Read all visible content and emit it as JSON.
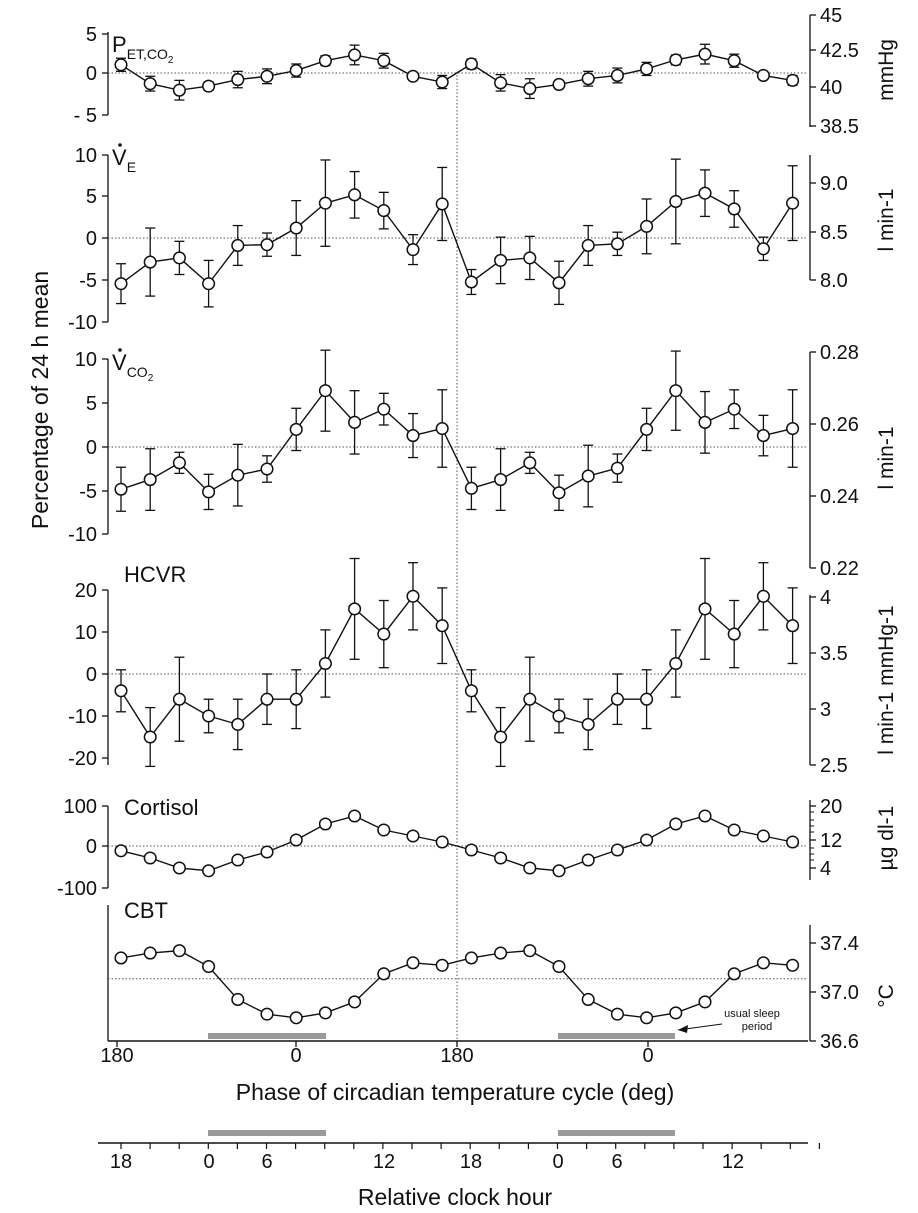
{
  "y_axis_title": "Percentage of 24 h mean",
  "x_axis_title": "Phase of circadian temperature cycle (deg)",
  "x_phase_ticks": [
    "180",
    "0",
    "180",
    "0"
  ],
  "clock_axis_title": "Relative clock hour",
  "clock_ticks": [
    "18",
    "0",
    "6",
    "12",
    "18",
    "0",
    "6",
    "12"
  ],
  "sleep_annotation": [
    "usual sleep",
    "period"
  ],
  "colors": {
    "ink": "#111111",
    "sleep_bar": "#9a9a9a",
    "dotted": "#555555"
  },
  "chart_data": [
    {
      "type": "line",
      "panel": "PET,CO2",
      "label": "P",
      "label_sub": "ET,CO",
      "label_sub2": "2",
      "ylim": [
        -5,
        5
      ],
      "yticks": [
        "5",
        "0",
        "- 5"
      ],
      "right_ylim": [
        38.5,
        45
      ],
      "right_ticks": [
        "45",
        "42.5",
        "40",
        "38.5"
      ],
      "right_unit": "mmHg",
      "values": [
        1.0,
        -1.3,
        -2.1,
        -1.6,
        -0.8,
        -0.4,
        0.3,
        1.5,
        2.2,
        1.5,
        -0.4,
        -1.1,
        1.1,
        -1.2,
        -1.9,
        -1.4,
        -0.7,
        -0.3,
        0.5,
        1.6,
        2.3,
        1.5,
        -0.3,
        -0.9
      ],
      "errors": [
        0.8,
        0.9,
        1.2,
        0.5,
        1.0,
        0.9,
        0.8,
        0.6,
        1.2,
        0.9,
        0.4,
        0.8,
        0.6,
        1.0,
        1.2,
        0.5,
        0.9,
        0.9,
        0.8,
        0.6,
        1.2,
        0.8,
        0.4,
        0.6
      ]
    },
    {
      "type": "line",
      "panel": "VE",
      "label": "V",
      "label_sub": "E",
      "ylim": [
        -10,
        10
      ],
      "yticks": [
        "10",
        "5",
        "0",
        "-5",
        "-10"
      ],
      "right_ticks": [
        "9.0",
        "8.5",
        "8.0"
      ],
      "right_unit": "l min-1",
      "values": [
        -5.5,
        -2.9,
        -2.4,
        -5.5,
        -0.9,
        -0.8,
        1.2,
        4.2,
        5.2,
        3.3,
        -1.4,
        4.1,
        -5.3,
        -2.7,
        -2.4,
        -5.4,
        -0.9,
        -0.7,
        1.4,
        4.4,
        5.4,
        3.5,
        -1.3,
        4.2
      ],
      "errors": [
        2.4,
        4.1,
        2.0,
        2.8,
        2.4,
        1.4,
        3.3,
        5.2,
        2.8,
        2.2,
        1.8,
        4.4,
        1.5,
        2.8,
        2.6,
        2.6,
        2.4,
        1.4,
        3.3,
        5.1,
        2.8,
        2.2,
        1.4,
        4.5
      ]
    },
    {
      "type": "line",
      "panel": "VCO2",
      "label": "V",
      "label_sub": "CO",
      "label_sub2": "2",
      "ylim": [
        -10,
        10
      ],
      "yticks": [
        "10",
        "5",
        "0",
        "-5",
        "-10"
      ],
      "right_ticks": [
        "0.28",
        "0.26",
        "0.24",
        "0.22"
      ],
      "right_unit": "l min-1",
      "values": [
        -4.8,
        -3.7,
        -1.8,
        -5.1,
        -3.2,
        -2.5,
        2.0,
        6.4,
        2.8,
        4.3,
        1.3,
        2.1,
        -4.7,
        -3.7,
        -1.8,
        -5.2,
        -3.3,
        -2.4,
        2.0,
        6.4,
        2.8,
        4.3,
        1.3,
        2.1
      ],
      "errors": [
        2.5,
        3.5,
        1.2,
        2.0,
        3.5,
        1.5,
        2.4,
        4.6,
        3.6,
        1.8,
        2.5,
        4.4,
        2.4,
        3.5,
        1.2,
        2.0,
        3.5,
        1.6,
        2.4,
        4.5,
        3.5,
        2.2,
        2.3,
        4.4
      ]
    },
    {
      "type": "line",
      "panel": "HCVR",
      "label": "HCVR",
      "ylim": [
        -22,
        26
      ],
      "yticks": [
        "20",
        "10",
        "0",
        "-10",
        "-20"
      ],
      "ytick_values": [
        20,
        10,
        0,
        -10,
        -20
      ],
      "right_ticks": [
        "4",
        "3.5",
        "3",
        "2.5"
      ],
      "right_unit": "l min-1 mmHg-1",
      "values": [
        -4,
        -15,
        -6,
        -10,
        -12,
        -6,
        -6,
        2.5,
        15.5,
        9.5,
        18.5,
        11.5,
        -4,
        -15,
        -6,
        -10,
        -12,
        -6,
        -6,
        2.5,
        15.5,
        9.5,
        18.5,
        11.5
      ],
      "errors": [
        5,
        7,
        10,
        4,
        6,
        6,
        7,
        8,
        12,
        8,
        8,
        9,
        5,
        7,
        10,
        4,
        6,
        6,
        7,
        8,
        12,
        8,
        8,
        9
      ]
    },
    {
      "type": "line",
      "panel": "Cortisol",
      "label": "Cortisol",
      "ylim": [
        -100,
        100
      ],
      "yticks": [
        "100",
        "0",
        "-100"
      ],
      "right_ticks": [
        "20",
        "12",
        "4"
      ],
      "right_unit": "µg dl-1",
      "values": [
        -12,
        -30,
        -55,
        -62,
        -35,
        -15,
        15,
        55,
        75,
        40,
        25,
        10,
        -10,
        -30,
        -55,
        -62,
        -35,
        -10,
        15,
        55,
        75,
        40,
        25,
        10
      ]
    },
    {
      "type": "line",
      "panel": "CBT",
      "label": "CBT",
      "right_ylim": [
        36.6,
        37.55
      ],
      "right_ticks": [
        "37.4",
        "37.0",
        "36.6"
      ],
      "right_unit": "°C",
      "reference_level": 37.11,
      "values": [
        37.28,
        37.32,
        37.34,
        37.21,
        36.94,
        36.82,
        36.79,
        36.83,
        36.92,
        37.15,
        37.24,
        37.22,
        37.28,
        37.32,
        37.34,
        37.21,
        36.94,
        36.82,
        36.79,
        36.83,
        36.92,
        37.15,
        37.24,
        37.22
      ]
    }
  ]
}
